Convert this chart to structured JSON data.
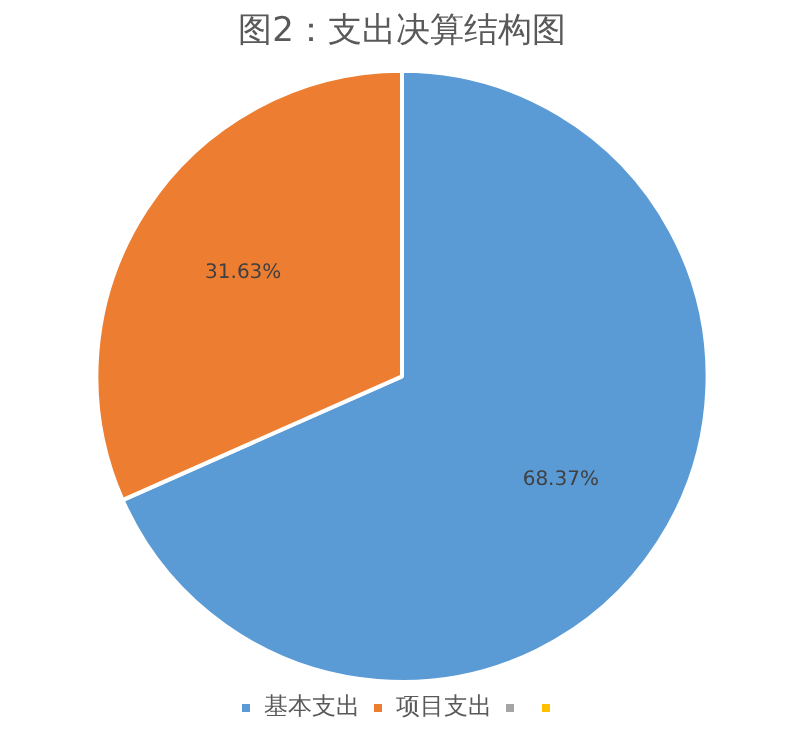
{
  "chart_data": {
    "type": "pie",
    "title": "图2：支出决算结构图",
    "categories": [
      "基本支出",
      "项目支出",
      null,
      null
    ],
    "values": [
      68.37,
      31.63,
      0,
      0
    ],
    "colors": [
      "#5b9bd5",
      "#ed7d31",
      "#a5a5a5",
      "#ffc000"
    ],
    "value_labels": [
      "68.37%",
      "31.63%",
      null,
      null
    ],
    "legend": "bottom"
  }
}
